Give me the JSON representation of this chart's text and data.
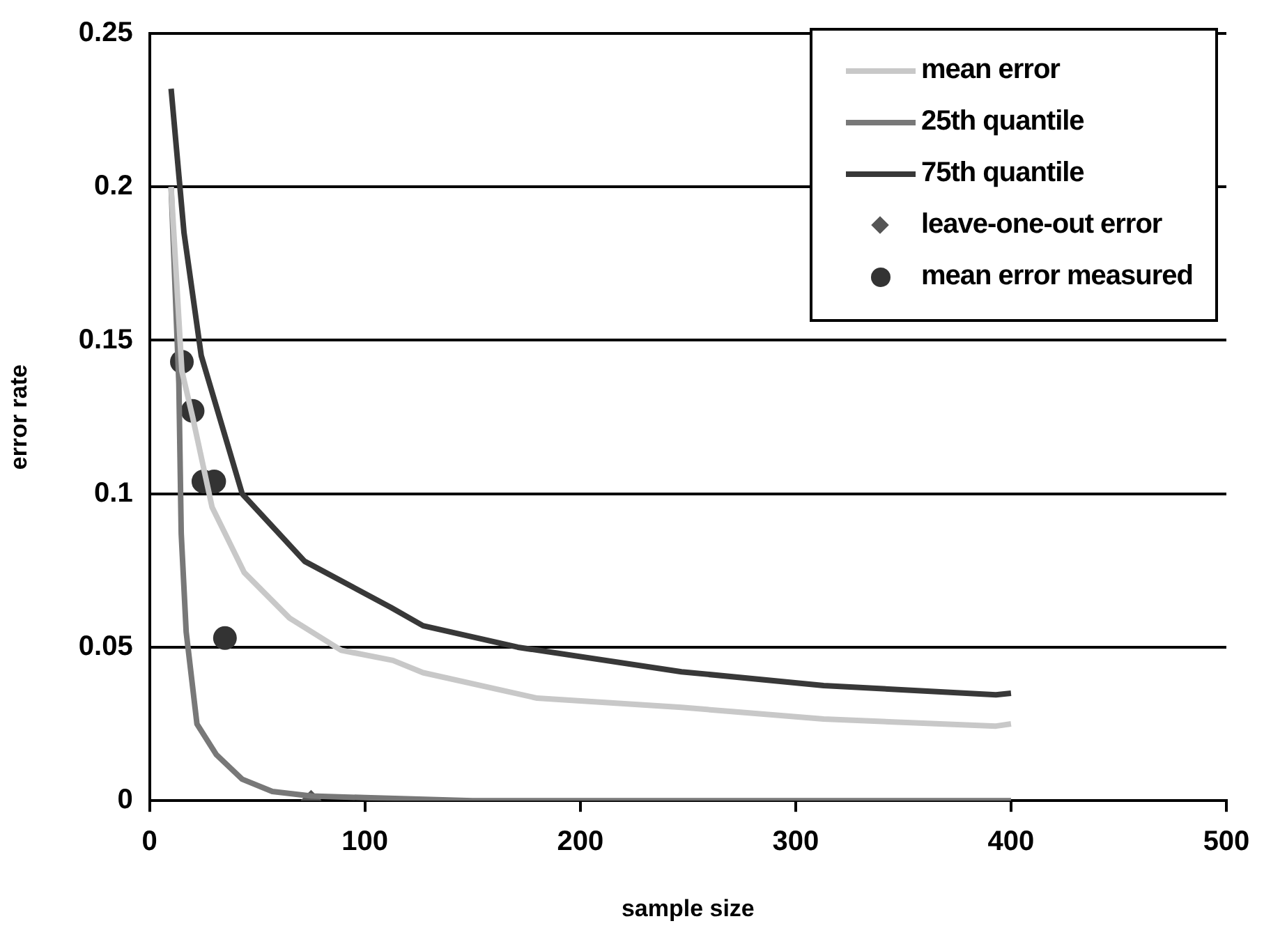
{
  "chart_data": {
    "type": "line",
    "xlabel": "sample size",
    "ylabel": "error rate",
    "xlim": [
      0,
      500
    ],
    "xticks": [
      0,
      100,
      200,
      300,
      400,
      500
    ],
    "ylim": [
      0,
      0.25
    ],
    "yticks": [
      0,
      0.05,
      0.1,
      0.15,
      0.2,
      0.25
    ],
    "grid": "y",
    "legend": "top right",
    "series": [
      {
        "name": "mean error",
        "type": "line",
        "marker": "none",
        "color": "#c8c8c8",
        "x": [
          10,
          15,
          20,
          29,
          44,
          65,
          89,
          113,
          127,
          180,
          247,
          313,
          393,
          400
        ],
        "values": [
          0.2,
          0.14,
          0.125,
          0.0957,
          0.0743,
          0.0595,
          0.049,
          0.0457,
          0.0417,
          0.0334,
          0.0304,
          0.0266,
          0.0243,
          0.025
        ]
      },
      {
        "name": "25th quantile",
        "type": "line",
        "marker": "none",
        "color": "#787878",
        "x": [
          10,
          13.6,
          14.7,
          17,
          22,
          31,
          43,
          57,
          75,
          100,
          150,
          400
        ],
        "values": [
          0.2,
          0.136,
          0.087,
          0.055,
          0.025,
          0.015,
          0.007,
          0.003,
          0.0015,
          0.001,
          0,
          0
        ]
      },
      {
        "name": "75th quantile",
        "type": "line",
        "marker": "none",
        "color": "#383838",
        "x": [
          10,
          16,
          24,
          43,
          72,
          112,
          127,
          171,
          247,
          313,
          393,
          400
        ],
        "values": [
          0.232,
          0.185,
          0.145,
          0.1,
          0.078,
          0.063,
          0.057,
          0.05,
          0.042,
          0.0375,
          0.0345,
          0.035
        ]
      },
      {
        "name": "leave-one-out error",
        "type": "scatter",
        "marker": "diamond",
        "color": "#555555",
        "x": [
          75
        ],
        "values": [
          0
        ]
      },
      {
        "name": "mean error measured",
        "type": "scatter",
        "marker": "circle",
        "color": "#333333",
        "x": [
          15,
          20,
          25,
          30,
          35
        ],
        "values": [
          0.143,
          0.127,
          0.104,
          0.104,
          0.053
        ]
      }
    ]
  }
}
